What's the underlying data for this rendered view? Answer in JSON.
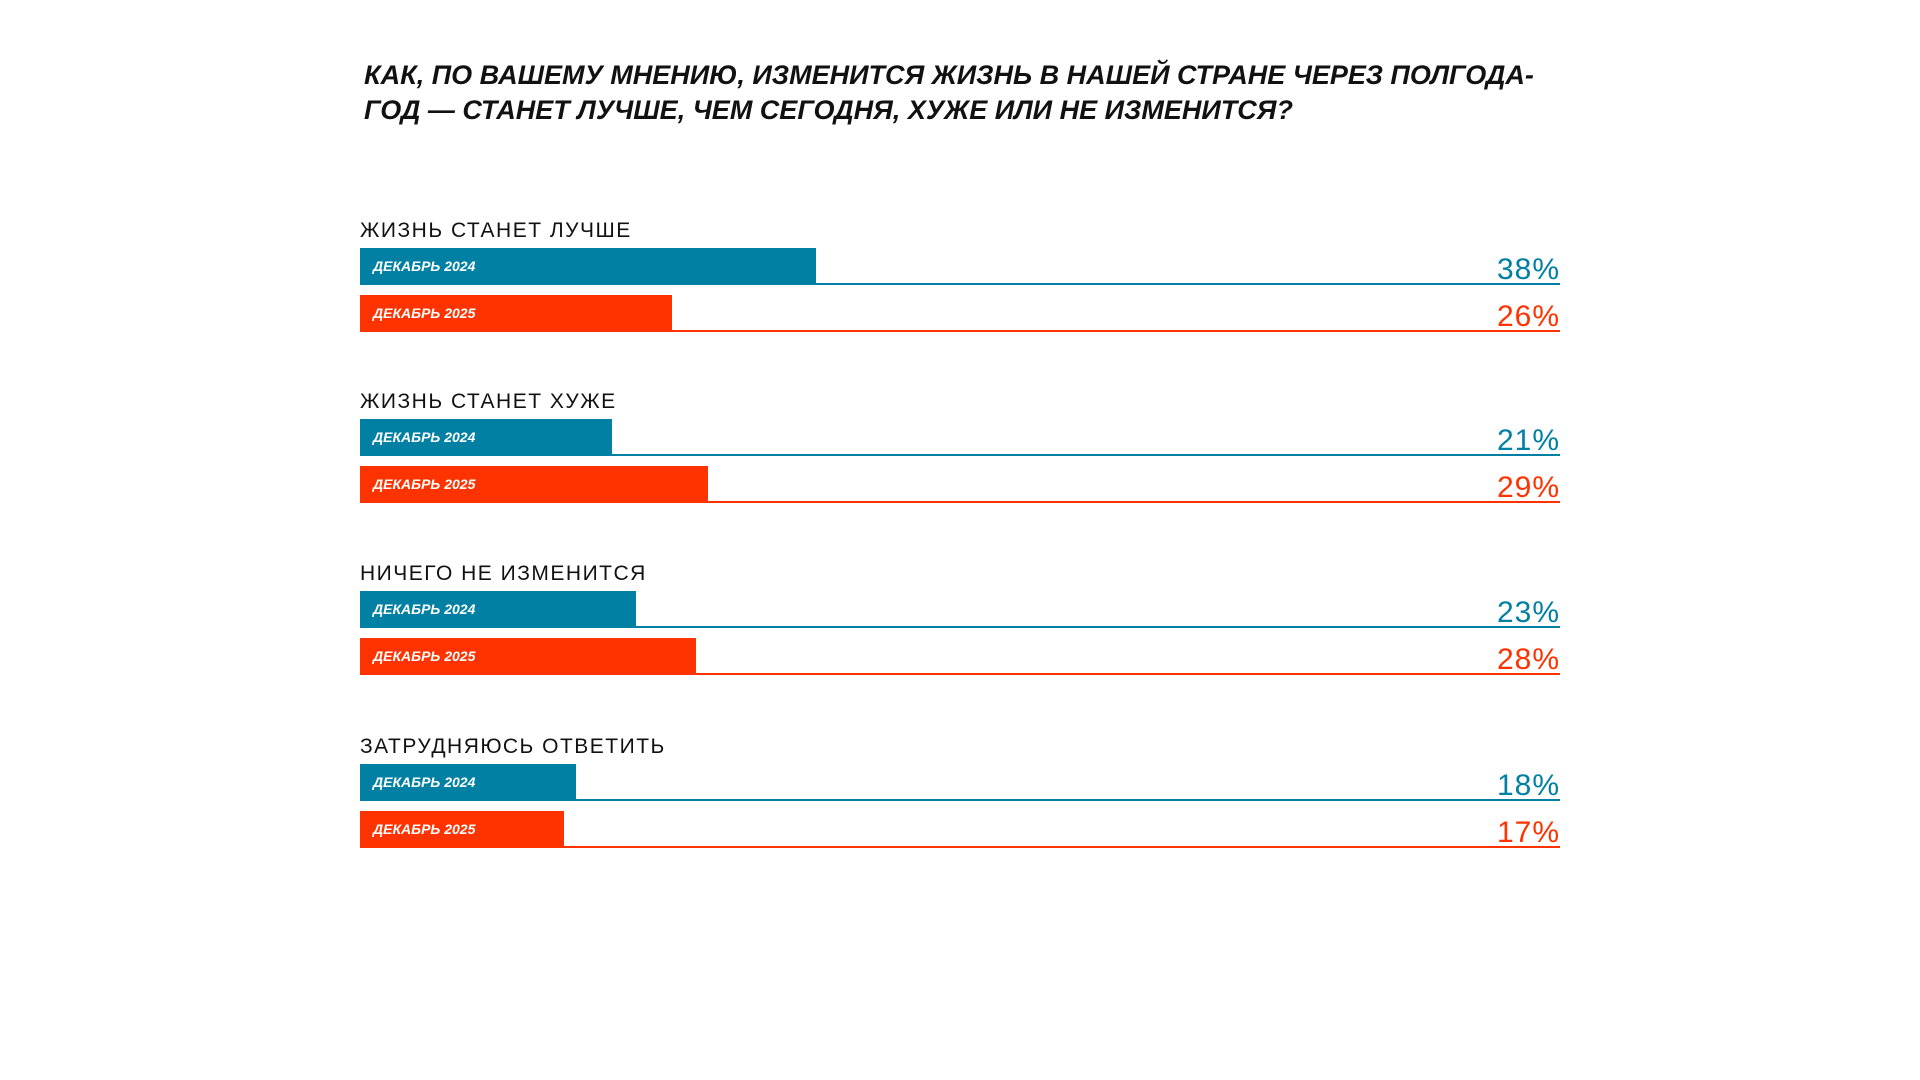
{
  "chart_data": {
    "type": "bar",
    "title": "Как, по вашему мнению, изменится жизнь в нашей стране через полгода-год — станет лучше, чем сегодня, хуже или не изменится?",
    "categories": [
      "Жизнь станет лучше",
      "Жизнь станет хуже",
      "Ничего не изменится",
      "Затрудняюсь ответить"
    ],
    "series": [
      {
        "name": "Декабрь 2024",
        "color": "#0180A4",
        "values": [
          38,
          21,
          23,
          18
        ]
      },
      {
        "name": "Декабрь 2025",
        "color": "#FF3300",
        "values": [
          26,
          29,
          28,
          17
        ]
      }
    ],
    "unit": "%",
    "ylim": [
      0,
      100
    ]
  }
}
